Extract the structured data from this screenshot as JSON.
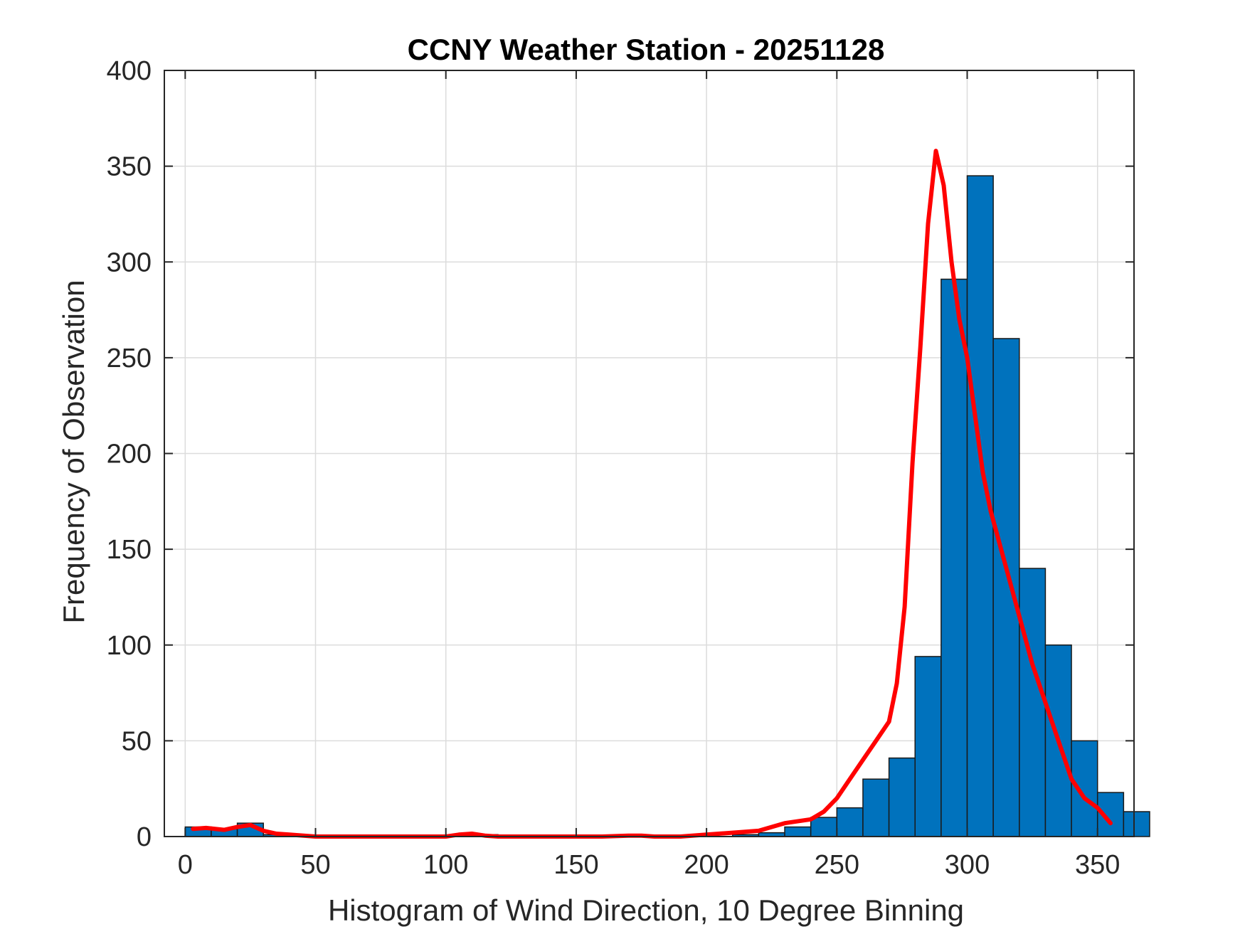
{
  "chart_data": {
    "type": "bar",
    "title": "CCNY Weather Station - 20251128",
    "xlabel": "Histogram of Wind Direction, 10 Degree Binning",
    "ylabel": "Frequency of Observation",
    "xlim": [
      -8,
      364
    ],
    "ylim": [
      0,
      400
    ],
    "xticks": [
      0,
      50,
      100,
      150,
      200,
      250,
      300,
      350
    ],
    "yticks": [
      0,
      50,
      100,
      150,
      200,
      250,
      300,
      350,
      400
    ],
    "grid": true,
    "bar_color": "#0072bd",
    "curve_color": "#ff0000",
    "bins": {
      "width": 10,
      "edges_start": 0,
      "counts": [
        5,
        4,
        7,
        1,
        0,
        0,
        0,
        0,
        0,
        0,
        0,
        1,
        0,
        0,
        0,
        0,
        0,
        0,
        0,
        0,
        0,
        1,
        2,
        5,
        10,
        15,
        30,
        41,
        94,
        291,
        345,
        260,
        140,
        100,
        50,
        23,
        13
      ]
    },
    "series": [
      {
        "type": "line",
        "x": [
          3,
          8,
          15,
          20,
          25,
          30,
          35,
          40,
          50,
          60,
          80,
          100,
          105,
          110,
          115,
          120,
          140,
          160,
          170,
          175,
          180,
          190,
          200,
          210,
          220,
          230,
          240,
          245,
          250,
          255,
          260,
          265,
          270,
          273,
          276,
          279,
          282,
          285,
          288,
          291,
          294,
          297,
          300,
          303,
          306,
          309,
          312,
          315,
          320,
          325,
          330,
          335,
          340,
          345,
          350,
          355
        ],
        "y": [
          4,
          4.5,
          3.5,
          5,
          6,
          3,
          1.5,
          1,
          0,
          0,
          0,
          0,
          1,
          1.5,
          0.5,
          0,
          0,
          0,
          0.5,
          0.5,
          0,
          0,
          1,
          2,
          3,
          7,
          9,
          13,
          20,
          30,
          40,
          50,
          60,
          80,
          120,
          195,
          255,
          320,
          358,
          340,
          300,
          270,
          250,
          220,
          190,
          170,
          155,
          140,
          115,
          90,
          70,
          50,
          30,
          20,
          15,
          7
        ]
      }
    ]
  }
}
